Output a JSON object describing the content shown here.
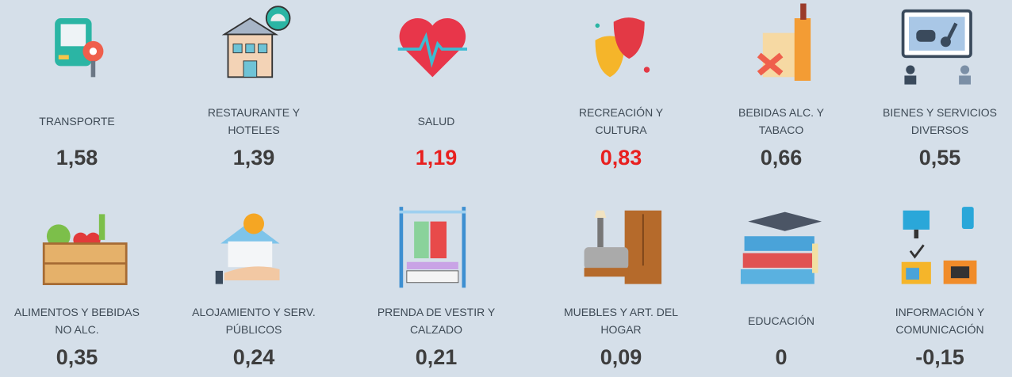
{
  "items": [
    {
      "label": "TRANSPORTE",
      "value": "1,58",
      "color": "#3d3d3d"
    },
    {
      "label": "RESTAURANTE Y HOTELES",
      "value": "1,39",
      "color": "#3d3d3d"
    },
    {
      "label": "SALUD",
      "value": "1,19",
      "color": "#e8201f"
    },
    {
      "label": "RECREACIÓN Y CULTURA",
      "value": "0,83",
      "color": "#e8201f"
    },
    {
      "label": "BEBIDAS ALC. Y TABACO",
      "value": "0,66",
      "color": "#3d3d3d"
    },
    {
      "label": "BIENES Y SERVICIOS DIVERSOS",
      "value": "0,55",
      "color": "#3d3d3d"
    },
    {
      "label": "ALIMENTOS Y BEBIDAS NO ALC.",
      "value": "0,35",
      "color": "#3d3d3d"
    },
    {
      "label": "ALOJAMIENTO Y SERV. PÚBLICOS",
      "value": "0,24",
      "color": "#3d3d3d"
    },
    {
      "label": "PRENDA DE VESTIR Y CALZADO",
      "value": "0,21",
      "color": "#3d3d3d"
    },
    {
      "label": "MUEBLES Y ART. DEL HOGAR",
      "value": "0,09",
      "color": "#3d3d3d"
    },
    {
      "label": "EDUCACIÓN",
      "value": "0",
      "color": "#3d3d3d"
    },
    {
      "label": "INFORMACIÓN Y COMUNICACIÓN",
      "value": "-0,15",
      "color": "#3d3d3d"
    }
  ]
}
